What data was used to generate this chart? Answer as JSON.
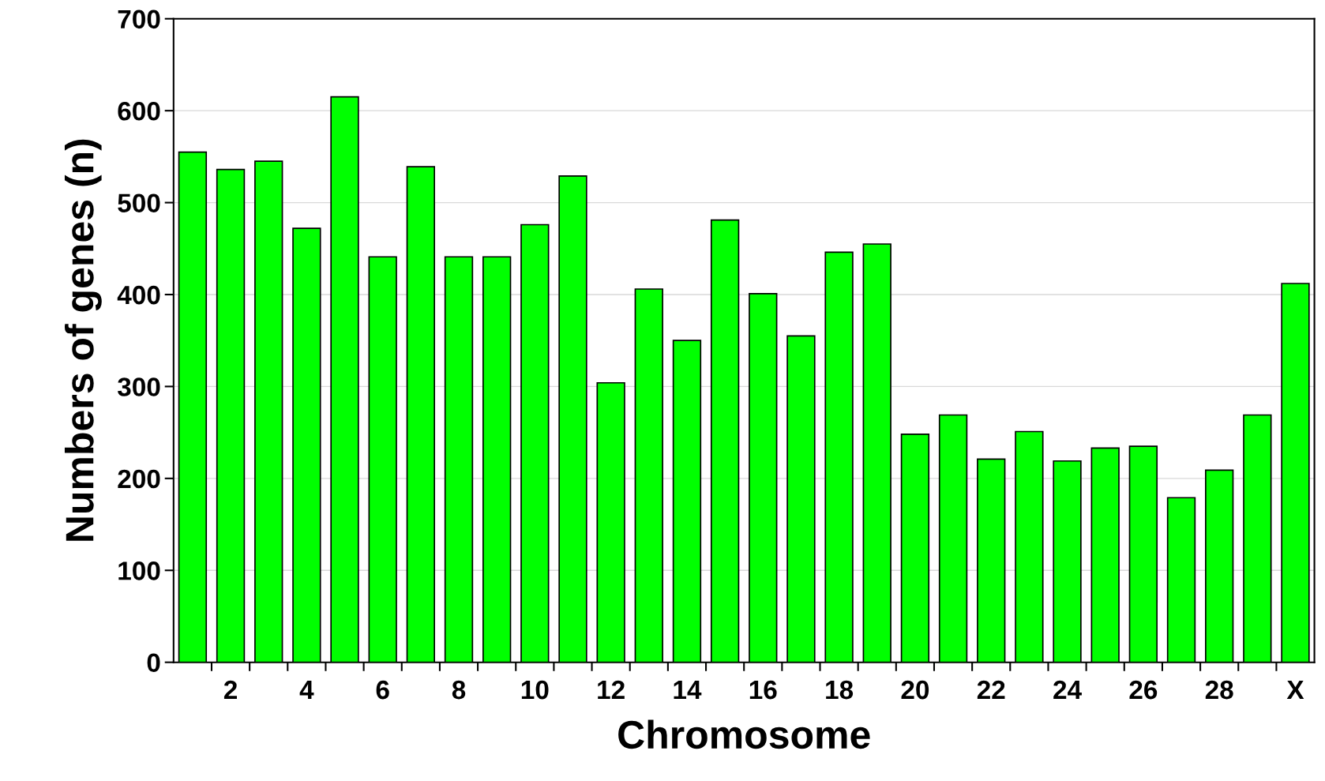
{
  "chart_data": {
    "type": "bar",
    "xlabel": "Chromosome",
    "ylabel": "Numbers of genes (n)",
    "categories": [
      null,
      "2",
      null,
      "4",
      null,
      "6",
      null,
      "8",
      null,
      "10",
      null,
      "12",
      null,
      "14",
      null,
      "16",
      null,
      "18",
      null,
      "20",
      null,
      "22",
      null,
      "24",
      null,
      "26",
      null,
      "28",
      null,
      "X"
    ],
    "values": [
      555,
      536,
      545,
      472,
      615,
      441,
      539,
      441,
      441,
      476,
      529,
      304,
      406,
      350,
      481,
      401,
      355,
      446,
      455,
      248,
      269,
      221,
      251,
      219,
      233,
      235,
      179,
      209,
      269,
      412
    ],
    "color": "#00ff00",
    "ylim": [
      0,
      700
    ],
    "yticks": [
      0,
      100,
      200,
      300,
      400,
      500,
      600,
      700
    ],
    "grid": "y"
  }
}
